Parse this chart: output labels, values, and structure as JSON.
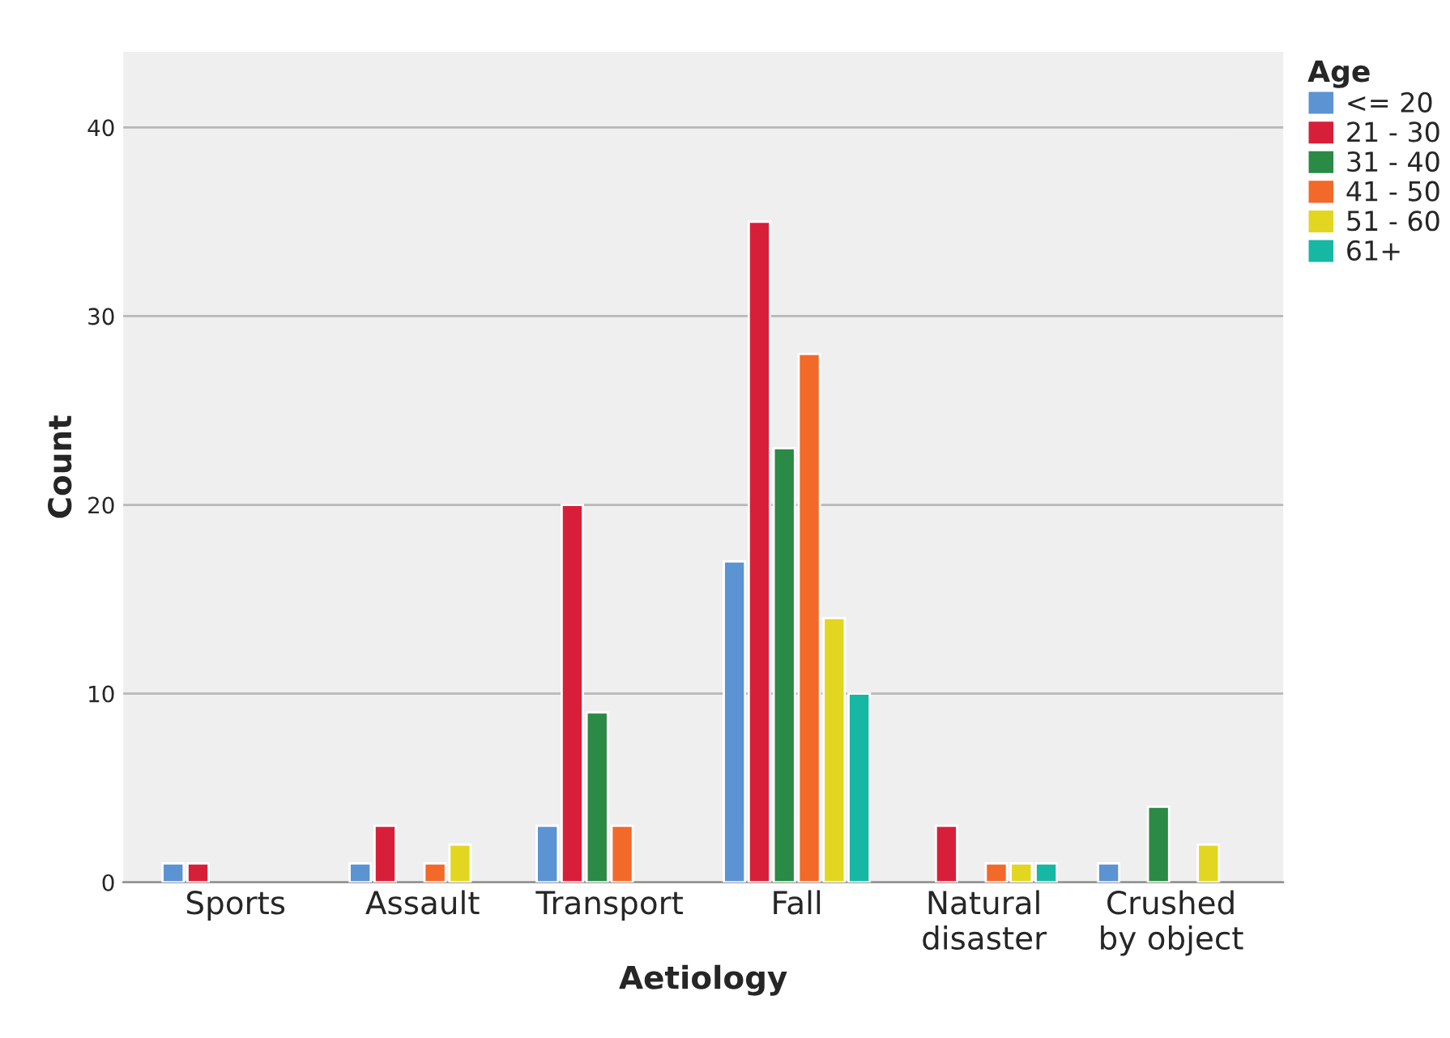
{
  "chart_data": {
    "type": "bar",
    "xlabel": "Aetiology",
    "ylabel": "Count",
    "legend_title": "Age",
    "categories": [
      "Sports",
      "Assault",
      "Transport",
      "Fall",
      "Natural\ndisaster",
      "Crushed\nby object"
    ],
    "series": [
      {
        "name": "<= 20",
        "color": "#5b93d3",
        "values": [
          1,
          1,
          3,
          17,
          null,
          1
        ]
      },
      {
        "name": "21 - 30",
        "color": "#d81f3a",
        "values": [
          1,
          3,
          20,
          35,
          3,
          null
        ]
      },
      {
        "name": "31 - 40",
        "color": "#2b8a45",
        "values": [
          null,
          null,
          9,
          23,
          null,
          4
        ]
      },
      {
        "name": "41 - 50",
        "color": "#f2692a",
        "values": [
          null,
          1,
          3,
          28,
          1,
          null
        ]
      },
      {
        "name": "51 - 60",
        "color": "#e2d620",
        "values": [
          null,
          2,
          null,
          14,
          1,
          2
        ]
      },
      {
        "name": "61+",
        "color": "#16b8a3",
        "values": [
          null,
          null,
          null,
          10,
          1,
          null
        ]
      }
    ],
    "ylim": [
      0,
      44
    ],
    "yticks": [
      0,
      10,
      20,
      30,
      40
    ],
    "grid": "y",
    "legend": "top right"
  }
}
